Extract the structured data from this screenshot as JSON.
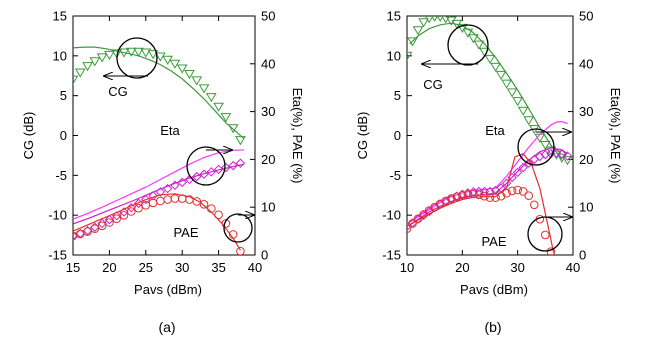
{
  "chart_data": [
    {
      "type": "line",
      "panel_label": "(a)",
      "xlabel": "Pavs (dBm)",
      "ylabel_left": "CG (dB)",
      "ylabel_right": "Eta(%), PAE (%)",
      "xlim": [
        15,
        40
      ],
      "ylim_left": [
        -15,
        15
      ],
      "ylim_right": [
        0,
        50
      ],
      "xticks": [
        15,
        20,
        25,
        30,
        35,
        40
      ],
      "yticks_left": [
        -15,
        -10,
        -5,
        0,
        5,
        10,
        15
      ],
      "yticks_right": [
        0,
        10,
        20,
        30,
        40,
        50
      ],
      "grid": false,
      "annotations": [
        "CG",
        "Eta",
        "PAE"
      ],
      "series": [
        {
          "axis": "left",
          "style": "line",
          "color": "#3c9a3c",
          "x": [
            15,
            16.5,
            18,
            19.5,
            21,
            22.5,
            24,
            25.5,
            27,
            28.5,
            30,
            31.5,
            33,
            34.5,
            36,
            37.5,
            38.5
          ],
          "values": [
            11.0,
            11.1,
            11.1,
            10.9,
            10.6,
            10.3,
            10.0,
            9.5,
            8.9,
            8.1,
            7.1,
            5.9,
            4.6,
            3.1,
            1.6,
            0.4,
            -0.4
          ]
        },
        {
          "axis": "left",
          "style": "triangles",
          "color": "#3c9a3c",
          "x": [
            15,
            16,
            17,
            18,
            19,
            20,
            21,
            22,
            23,
            24,
            25,
            26,
            27,
            28,
            29,
            30,
            31,
            32,
            33,
            34,
            35,
            36,
            37,
            38
          ],
          "values": [
            7.0,
            7.9,
            8.7,
            9.3,
            9.8,
            10.1,
            10.3,
            10.4,
            10.5,
            10.5,
            10.4,
            10.2,
            9.9,
            9.5,
            9.0,
            8.4,
            7.7,
            6.9,
            5.9,
            4.8,
            3.6,
            2.3,
            0.9,
            -0.6
          ]
        },
        {
          "axis": "right",
          "style": "line",
          "color": "#ff33ff",
          "x": [
            15,
            17,
            19,
            21,
            23,
            25,
            27,
            29,
            31,
            33,
            35,
            37,
            38.5
          ],
          "values": [
            7.5,
            8.7,
            10.0,
            11.4,
            12.8,
            14.2,
            15.8,
            17.4,
            19.0,
            20.4,
            21.4,
            21.9,
            22.0
          ]
        },
        {
          "axis": "right",
          "style": "line",
          "color": "#cc22cc",
          "x": [
            15,
            17,
            19,
            21,
            23,
            25,
            27,
            29,
            31,
            33,
            35,
            37,
            38.5
          ],
          "values": [
            6.5,
            7.6,
            8.8,
            10.0,
            11.2,
            12.5,
            13.8,
            15.0,
            16.1,
            17.0,
            17.8,
            18.5,
            19.0
          ]
        },
        {
          "axis": "right",
          "style": "diamonds",
          "color": "#cc22cc",
          "x": [
            15,
            16,
            17,
            18,
            19,
            20,
            21,
            22,
            23,
            24,
            25,
            26,
            27,
            28,
            29,
            30,
            31,
            32,
            33,
            34,
            35,
            36,
            37,
            38
          ],
          "values": [
            4.0,
            4.5,
            5.1,
            5.8,
            6.6,
            7.4,
            8.2,
            9.0,
            9.9,
            10.8,
            11.6,
            12.4,
            13.2,
            13.9,
            14.6,
            15.2,
            15.8,
            16.4,
            16.9,
            17.4,
            17.9,
            18.3,
            18.7,
            19.2
          ]
        },
        {
          "axis": "right",
          "style": "line",
          "color": "#e03030",
          "x": [
            15,
            17,
            19,
            21,
            23,
            25,
            27,
            29,
            31,
            32.5,
            34,
            35.5,
            37,
            38
          ],
          "values": [
            5.0,
            6.3,
            7.6,
            8.9,
            10.3,
            11.6,
            12.6,
            12.8,
            12.2,
            11.0,
            9.0,
            6.5,
            3.5,
            1.0
          ]
        },
        {
          "axis": "right",
          "style": "circles",
          "color": "#e03030",
          "x": [
            15,
            16,
            17,
            18,
            19,
            20,
            21,
            22,
            23,
            24,
            25,
            26,
            27,
            28,
            29,
            30,
            31,
            32,
            33,
            34,
            35,
            36,
            37,
            38
          ],
          "values": [
            4.0,
            4.4,
            4.9,
            5.5,
            6.1,
            6.8,
            7.6,
            8.3,
            9.1,
            9.8,
            10.4,
            10.9,
            11.3,
            11.6,
            11.8,
            11.8,
            11.6,
            11.2,
            10.6,
            9.7,
            8.4,
            6.6,
            4.3,
            0.8
          ]
        }
      ]
    },
    {
      "type": "line",
      "panel_label": "(b)",
      "xlabel": "Pavs (dBm)",
      "ylabel_left": "CG (dB)",
      "ylabel_right": "Eta(%), PAE (%)",
      "xlim": [
        10,
        40
      ],
      "ylim_left": [
        -15,
        15
      ],
      "ylim_right": [
        0,
        50
      ],
      "xticks": [
        10,
        20,
        30,
        40
      ],
      "yticks_left": [
        -15,
        -10,
        -5,
        0,
        5,
        10,
        15
      ],
      "yticks_right": [
        0,
        10,
        20,
        30,
        40,
        50
      ],
      "grid": false,
      "annotations": [
        "CG",
        "Eta",
        "PAE"
      ],
      "series": [
        {
          "axis": "left",
          "style": "line",
          "color": "#3c9a3c",
          "x": [
            10.5,
            12,
            14,
            16,
            18,
            20,
            22,
            24,
            26,
            28,
            30,
            32,
            34,
            36,
            38
          ],
          "values": [
            11.5,
            12.5,
            13.4,
            13.9,
            14.1,
            13.8,
            12.9,
            11.5,
            9.8,
            7.8,
            5.7,
            3.4,
            1.0,
            -1.2,
            -3.0
          ]
        },
        {
          "axis": "left",
          "style": "triangles",
          "color": "#3c9a3c",
          "x": [
            10,
            11,
            12,
            13,
            14,
            15,
            16,
            17,
            18,
            19,
            20,
            21,
            22,
            23,
            24,
            25,
            26,
            27,
            28,
            29,
            30,
            31,
            32,
            33,
            34,
            35,
            36,
            37,
            38,
            39
          ],
          "values": [
            10.0,
            11.8,
            13.2,
            14.2,
            14.7,
            14.9,
            14.9,
            14.7,
            14.4,
            14.0,
            13.5,
            12.9,
            12.2,
            11.4,
            10.5,
            9.6,
            8.6,
            7.6,
            6.5,
            5.4,
            4.3,
            3.1,
            1.9,
            0.8,
            -0.3,
            -1.2,
            -1.9,
            -2.4,
            -2.8,
            -3.1
          ]
        },
        {
          "axis": "right",
          "style": "line",
          "color": "#ff33ff",
          "x": [
            10,
            12,
            14,
            16,
            18,
            20,
            22,
            24,
            26,
            28,
            30,
            32,
            34,
            36,
            37,
            38,
            39
          ],
          "values": [
            6.5,
            8.0,
            9.5,
            11.0,
            12.2,
            13.0,
            13.5,
            13.7,
            14.0,
            16.5,
            19.5,
            22.5,
            25.2,
            27.2,
            27.8,
            27.9,
            27.5
          ]
        },
        {
          "axis": "right",
          "style": "line",
          "color": "#cc22cc",
          "x": [
            10,
            12,
            14,
            16,
            18,
            20,
            22,
            24,
            26,
            28,
            30,
            32,
            34,
            36,
            38,
            39
          ],
          "values": [
            6.0,
            7.5,
            9.0,
            10.2,
            11.2,
            12.0,
            12.4,
            12.6,
            13.0,
            15.0,
            17.5,
            19.8,
            21.6,
            22.4,
            22.0,
            21.2
          ]
        },
        {
          "axis": "right",
          "style": "diamonds",
          "color": "#cc22cc",
          "x": [
            10,
            11,
            12,
            13,
            14,
            15,
            16,
            17,
            18,
            19,
            20,
            21,
            22,
            23,
            24,
            25,
            26,
            27,
            28,
            29,
            30,
            31,
            32,
            33,
            34,
            35,
            36,
            37,
            38,
            39
          ],
          "values": [
            6.0,
            6.7,
            7.5,
            8.3,
            9.1,
            9.9,
            10.6,
            11.2,
            11.8,
            12.3,
            12.7,
            13.0,
            13.2,
            13.3,
            13.3,
            13.3,
            13.5,
            14.0,
            15.0,
            16.2,
            17.3,
            18.3,
            19.2,
            20.0,
            20.6,
            21.0,
            21.2,
            21.3,
            21.1,
            20.7
          ]
        },
        {
          "axis": "right",
          "style": "line",
          "color": "#e03030",
          "x": [
            10,
            12,
            14,
            16,
            18,
            20,
            22,
            24,
            26,
            28,
            29.5,
            31,
            32.5,
            34,
            35.5,
            36.5
          ],
          "values": [
            6.0,
            7.3,
            8.6,
            9.8,
            10.8,
            11.6,
            12.1,
            12.2,
            12.2,
            14.0,
            20.5,
            21.2,
            19.0,
            14.0,
            6.0,
            0.5
          ]
        },
        {
          "axis": "right",
          "style": "circles",
          "color": "#e03030",
          "x": [
            10,
            11,
            12,
            13,
            14,
            15,
            16,
            17,
            18,
            19,
            20,
            21,
            22,
            23,
            24,
            25,
            26,
            27,
            28,
            29,
            30,
            31,
            32,
            33,
            34,
            35,
            36
          ],
          "values": [
            5.5,
            6.6,
            7.6,
            8.5,
            9.3,
            10.0,
            10.7,
            11.3,
            11.8,
            12.2,
            12.5,
            12.7,
            12.8,
            12.6,
            12.3,
            12.0,
            12.0,
            12.3,
            12.9,
            13.4,
            13.6,
            13.3,
            12.4,
            10.5,
            7.5,
            4.2,
            0.7
          ]
        }
      ]
    }
  ]
}
